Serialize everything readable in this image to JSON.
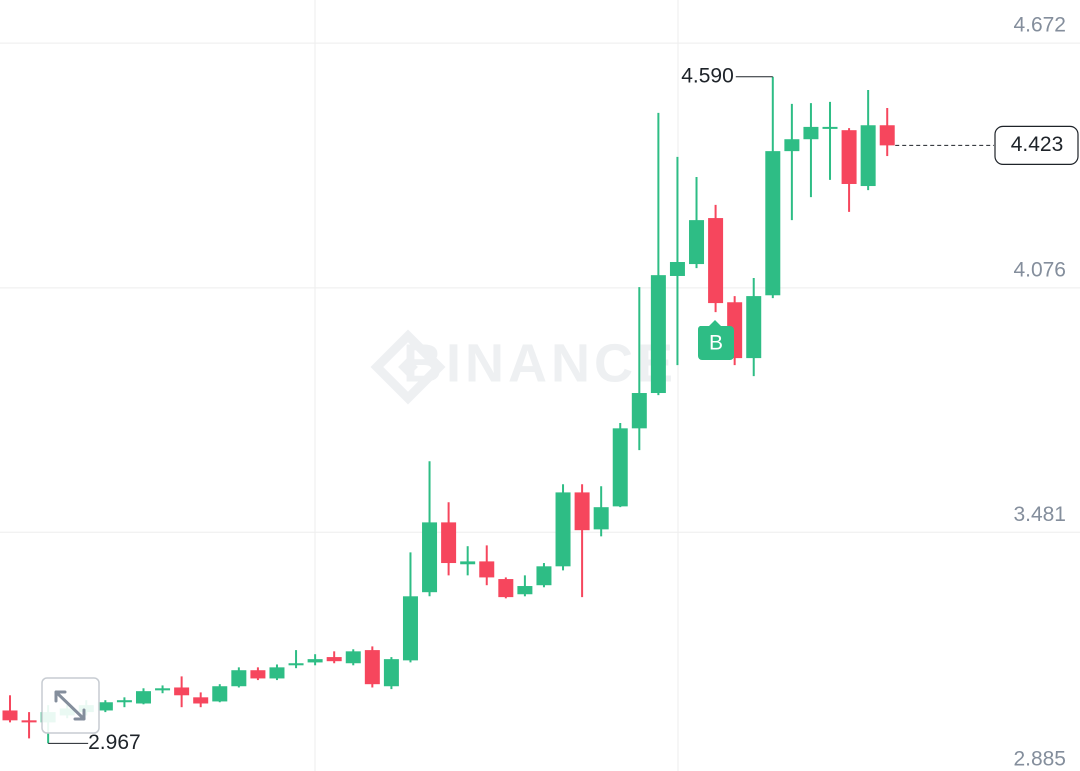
{
  "chart_data": {
    "type": "candlestick",
    "watermark": "BINANCE",
    "markers": [
      {
        "label": "B"
      }
    ],
    "up_color": "#2ebd85",
    "down_color": "#f6465d",
    "grid": true,
    "ylim": [
      2.885,
      4.777
    ],
    "yticks": [
      {
        "value": 2.885,
        "label": "2.885"
      },
      3.481,
      4.076,
      4.672
    ],
    "open": [
      3.047,
      3.023,
      3.018,
      3.035,
      3.043,
      3.047,
      3.067,
      3.064,
      3.096,
      3.103,
      3.079,
      3.069,
      3.106,
      3.145,
      3.125,
      3.157,
      3.164,
      3.177,
      3.162,
      3.194,
      3.106,
      3.169,
      3.335,
      3.505,
      3.403,
      3.41,
      3.367,
      3.33,
      3.352,
      3.398,
      3.578,
      3.488,
      3.544,
      3.734,
      3.82,
      4.105,
      4.134,
      4.246,
      4.041,
      3.905,
      4.058,
      4.409,
      4.438,
      4.465,
      4.46,
      4.324,
      4.472
    ],
    "high": [
      3.084,
      3.043,
      3.06,
      3.06,
      3.072,
      3.072,
      3.079,
      3.101,
      3.108,
      3.13,
      3.091,
      3.111,
      3.152,
      3.152,
      3.159,
      3.194,
      3.184,
      3.191,
      3.196,
      3.203,
      3.177,
      3.432,
      3.654,
      3.554,
      3.447,
      3.449,
      3.371,
      3.376,
      3.406,
      3.598,
      3.598,
      3.593,
      3.747,
      4.078,
      4.502,
      4.395,
      4.346,
      4.278,
      4.056,
      4.1,
      4.59,
      4.524,
      4.526,
      4.529,
      4.465,
      4.558,
      4.514
    ],
    "low": [
      3.018,
      2.979,
      2.967,
      3.028,
      3.035,
      3.043,
      3.055,
      3.062,
      3.089,
      3.055,
      3.055,
      3.067,
      3.103,
      3.121,
      3.121,
      3.15,
      3.157,
      3.162,
      3.157,
      3.103,
      3.099,
      3.164,
      3.325,
      3.376,
      3.376,
      3.352,
      3.32,
      3.325,
      3.347,
      3.388,
      3.323,
      3.471,
      3.542,
      3.681,
      3.815,
      3.888,
      4.124,
      4.017,
      3.888,
      3.861,
      4.051,
      4.241,
      4.297,
      4.339,
      4.261,
      4.314,
      4.397
    ],
    "close": [
      3.023,
      3.018,
      3.043,
      3.052,
      3.06,
      3.067,
      3.072,
      3.094,
      3.101,
      3.084,
      3.064,
      3.106,
      3.145,
      3.125,
      3.152,
      3.162,
      3.172,
      3.167,
      3.191,
      3.111,
      3.172,
      3.325,
      3.505,
      3.406,
      3.41,
      3.371,
      3.323,
      3.35,
      3.398,
      3.578,
      3.486,
      3.542,
      3.734,
      3.82,
      4.107,
      4.139,
      4.241,
      4.039,
      3.905,
      4.056,
      4.409,
      4.438,
      4.468,
      4.468,
      4.329,
      4.472,
      4.423
    ],
    "high_label": {
      "value": 4.59,
      "label": "4.590"
    },
    "low_label": {
      "value": 2.967,
      "label": "2.967"
    },
    "last_price": {
      "value": 4.423,
      "label": "4.423"
    }
  }
}
